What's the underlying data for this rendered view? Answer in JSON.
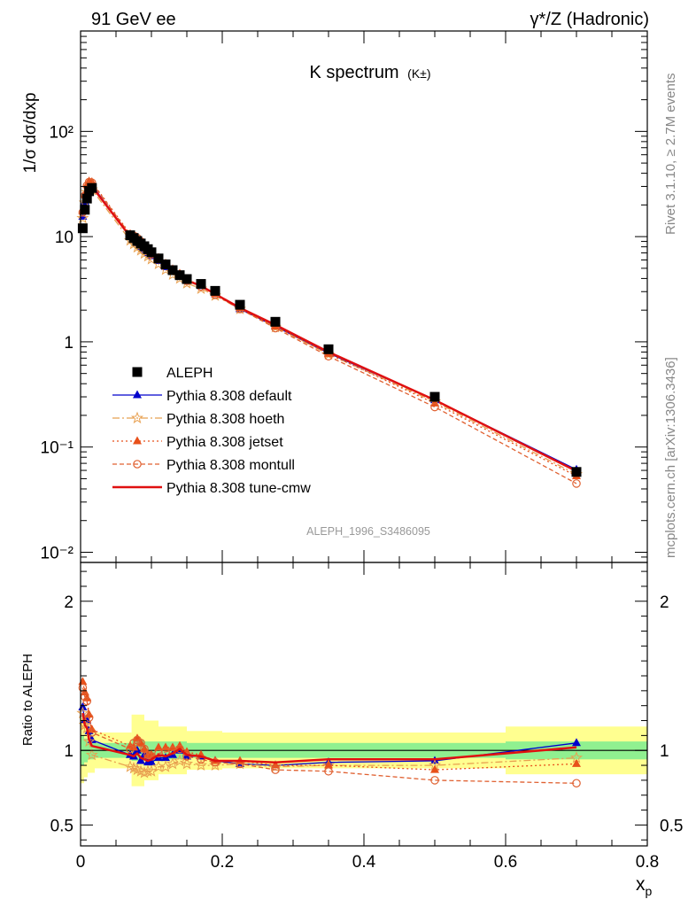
{
  "header": {
    "left": "91 GeV ee",
    "right": "γ*/Z (Hadronic)"
  },
  "side_labels": {
    "rivet": "Rivet 3.1.10, ≥ 2.7M events",
    "mcplots": "mcplots.cern.ch [arXiv:1306.3436]"
  },
  "colors": {
    "data": "#000000",
    "default": "#0000cc",
    "hoeth": "#e8a050",
    "jetset": "#e8501a",
    "montull": "#e06030",
    "cmw": "#e01010",
    "band_inner": "#90f090",
    "band_outer": "#ffff90"
  },
  "chart_data": [
    {
      "type": "scatter",
      "title": "K spectrum",
      "title_sup": "(K±)",
      "ylabel": "1/σ dσ/dxp",
      "analysis_label": "ALEPH_1996_S3486095",
      "yscale": "log",
      "xlim": [
        0,
        0.8
      ],
      "ylim": [
        0.008,
        900
      ],
      "ytick_labels": [
        "10⁻²",
        "10⁻¹",
        "1",
        "10",
        "10²"
      ],
      "legend": [
        "ALEPH",
        "Pythia 8.308 default",
        "Pythia 8.308 hoeth",
        "Pythia 8.308 jetset",
        "Pythia 8.308 montull",
        "Pythia 8.308 tune-cmw"
      ],
      "x": [
        0.003,
        0.006,
        0.009,
        0.012,
        0.016,
        0.07,
        0.075,
        0.08,
        0.085,
        0.09,
        0.095,
        0.1,
        0.11,
        0.12,
        0.13,
        0.14,
        0.15,
        0.17,
        0.19,
        0.225,
        0.275,
        0.35,
        0.5,
        0.7
      ],
      "series": [
        {
          "name": "ALEPH",
          "values": [
            12,
            18,
            23,
            27,
            29,
            10.3,
            9.7,
            9.1,
            8.6,
            8.1,
            7.6,
            7.1,
            6.2,
            5.45,
            4.8,
            4.3,
            3.95,
            3.55,
            3.05,
            2.25,
            1.55,
            0.85,
            0.3,
            0.058
          ]
        },
        {
          "name": "Pythia 8.308 default",
          "values": [
            15.5,
            21.5,
            27.5,
            30.5,
            31,
            10.0,
            9.3,
            8.7,
            8.0,
            7.5,
            7.0,
            6.55,
            5.9,
            5.15,
            4.65,
            4.3,
            3.8,
            3.4,
            2.85,
            2.05,
            1.4,
            0.78,
            0.28,
            0.061
          ]
        },
        {
          "name": "Pythia 8.308 hoeth",
          "values": [
            15,
            21,
            26.5,
            28.5,
            28,
            9.2,
            8.5,
            7.9,
            7.4,
            6.9,
            6.5,
            6.1,
            5.5,
            4.85,
            4.35,
            4.0,
            3.6,
            3.2,
            2.75,
            2.05,
            1.38,
            0.76,
            0.27,
            0.055
          ]
        },
        {
          "name": "Pythia 8.308 jetset",
          "values": [
            17.5,
            25,
            31,
            33.5,
            33,
            10.6,
            9.9,
            9.8,
            9.0,
            8.2,
            7.4,
            6.9,
            6.3,
            5.55,
            4.9,
            4.45,
            3.9,
            3.45,
            2.85,
            2.1,
            1.4,
            0.77,
            0.26,
            0.053
          ]
        },
        {
          "name": "Pythia 8.308 montull",
          "values": [
            17,
            24.5,
            30.5,
            33,
            32.5,
            10.4,
            10.2,
            9.7,
            9.0,
            8.2,
            7.4,
            6.8,
            6.1,
            5.4,
            4.8,
            4.35,
            3.8,
            3.35,
            2.8,
            2.05,
            1.35,
            0.73,
            0.24,
            0.045
          ]
        },
        {
          "name": "Pythia 8.308 tune-cmw",
          "values": [
            15,
            21,
            26.5,
            29,
            30,
            10.0,
            9.3,
            8.9,
            8.2,
            7.6,
            7.1,
            6.7,
            6.0,
            5.25,
            4.7,
            4.35,
            3.85,
            3.4,
            2.85,
            2.1,
            1.45,
            0.8,
            0.28,
            0.059
          ]
        }
      ]
    },
    {
      "type": "line",
      "ylabel": "Ratio to ALEPH",
      "xlabel": "xp",
      "xlim": [
        0,
        0.8
      ],
      "ylim": [
        0.36,
        2.26
      ],
      "xtick_labels": [
        "0",
        "0.2",
        "0.4",
        "0.6",
        "0.8"
      ],
      "ytick_labels": [
        "0.5",
        "1",
        "2"
      ],
      "x": [
        0.003,
        0.006,
        0.009,
        0.012,
        0.016,
        0.07,
        0.075,
        0.08,
        0.085,
        0.09,
        0.095,
        0.1,
        0.11,
        0.12,
        0.13,
        0.14,
        0.15,
        0.17,
        0.19,
        0.225,
        0.275,
        0.35,
        0.5,
        0.7
      ],
      "bands": {
        "edges": [
          0,
          0.005,
          0.01,
          0.02,
          0.065,
          0.072,
          0.09,
          0.11,
          0.15,
          0.2,
          0.6,
          0.8
        ],
        "inner_half": [
          0.1,
          0.08,
          0.06,
          0.05,
          0.05,
          0.07,
          0.06,
          0.06,
          0.05,
          0.05,
          0.06
        ],
        "outer_half": [
          0.22,
          0.18,
          0.15,
          0.12,
          0.12,
          0.24,
          0.2,
          0.16,
          0.13,
          0.12,
          0.16
        ]
      },
      "series": [
        {
          "name": "Pythia 8.308 default",
          "values": [
            1.29,
            1.2,
            1.2,
            1.13,
            1.07,
            0.97,
            0.96,
            1.0,
            0.93,
            0.97,
            0.92,
            0.92,
            0.95,
            0.95,
            0.97,
            1.0,
            0.96,
            0.96,
            0.93,
            0.91,
            0.9,
            0.92,
            0.93,
            1.05
          ]
        },
        {
          "name": "Pythia 8.308 hoeth",
          "values": [
            1.25,
            1.17,
            1.15,
            1.06,
            0.97,
            0.89,
            0.88,
            0.87,
            0.86,
            0.85,
            0.86,
            0.86,
            0.89,
            0.89,
            0.91,
            0.93,
            0.91,
            0.9,
            0.9,
            0.91,
            0.89,
            0.9,
            0.9,
            0.95
          ]
        },
        {
          "name": "Pythia 8.308 jetset",
          "values": [
            1.46,
            1.39,
            1.35,
            1.24,
            1.14,
            1.03,
            1.02,
            1.08,
            1.05,
            1.01,
            0.97,
            0.97,
            1.02,
            1.02,
            1.02,
            1.03,
            0.99,
            0.97,
            0.93,
            0.93,
            0.9,
            0.9,
            0.87,
            0.91
          ]
        },
        {
          "name": "Pythia 8.308 montull",
          "values": [
            1.42,
            1.36,
            1.33,
            1.22,
            1.12,
            1.01,
            1.05,
            1.07,
            1.05,
            1.01,
            0.97,
            0.96,
            0.98,
            0.99,
            1.0,
            1.01,
            0.96,
            0.94,
            0.92,
            0.91,
            0.87,
            0.86,
            0.8,
            0.78
          ]
        },
        {
          "name": "Pythia 8.308 tune-cmw",
          "values": [
            1.25,
            1.17,
            1.15,
            1.07,
            1.03,
            0.97,
            0.96,
            0.98,
            0.95,
            0.94,
            0.93,
            0.94,
            0.97,
            0.96,
            0.98,
            1.01,
            0.97,
            0.96,
            0.93,
            0.93,
            0.92,
            0.94,
            0.94,
            1.02
          ]
        }
      ]
    }
  ]
}
